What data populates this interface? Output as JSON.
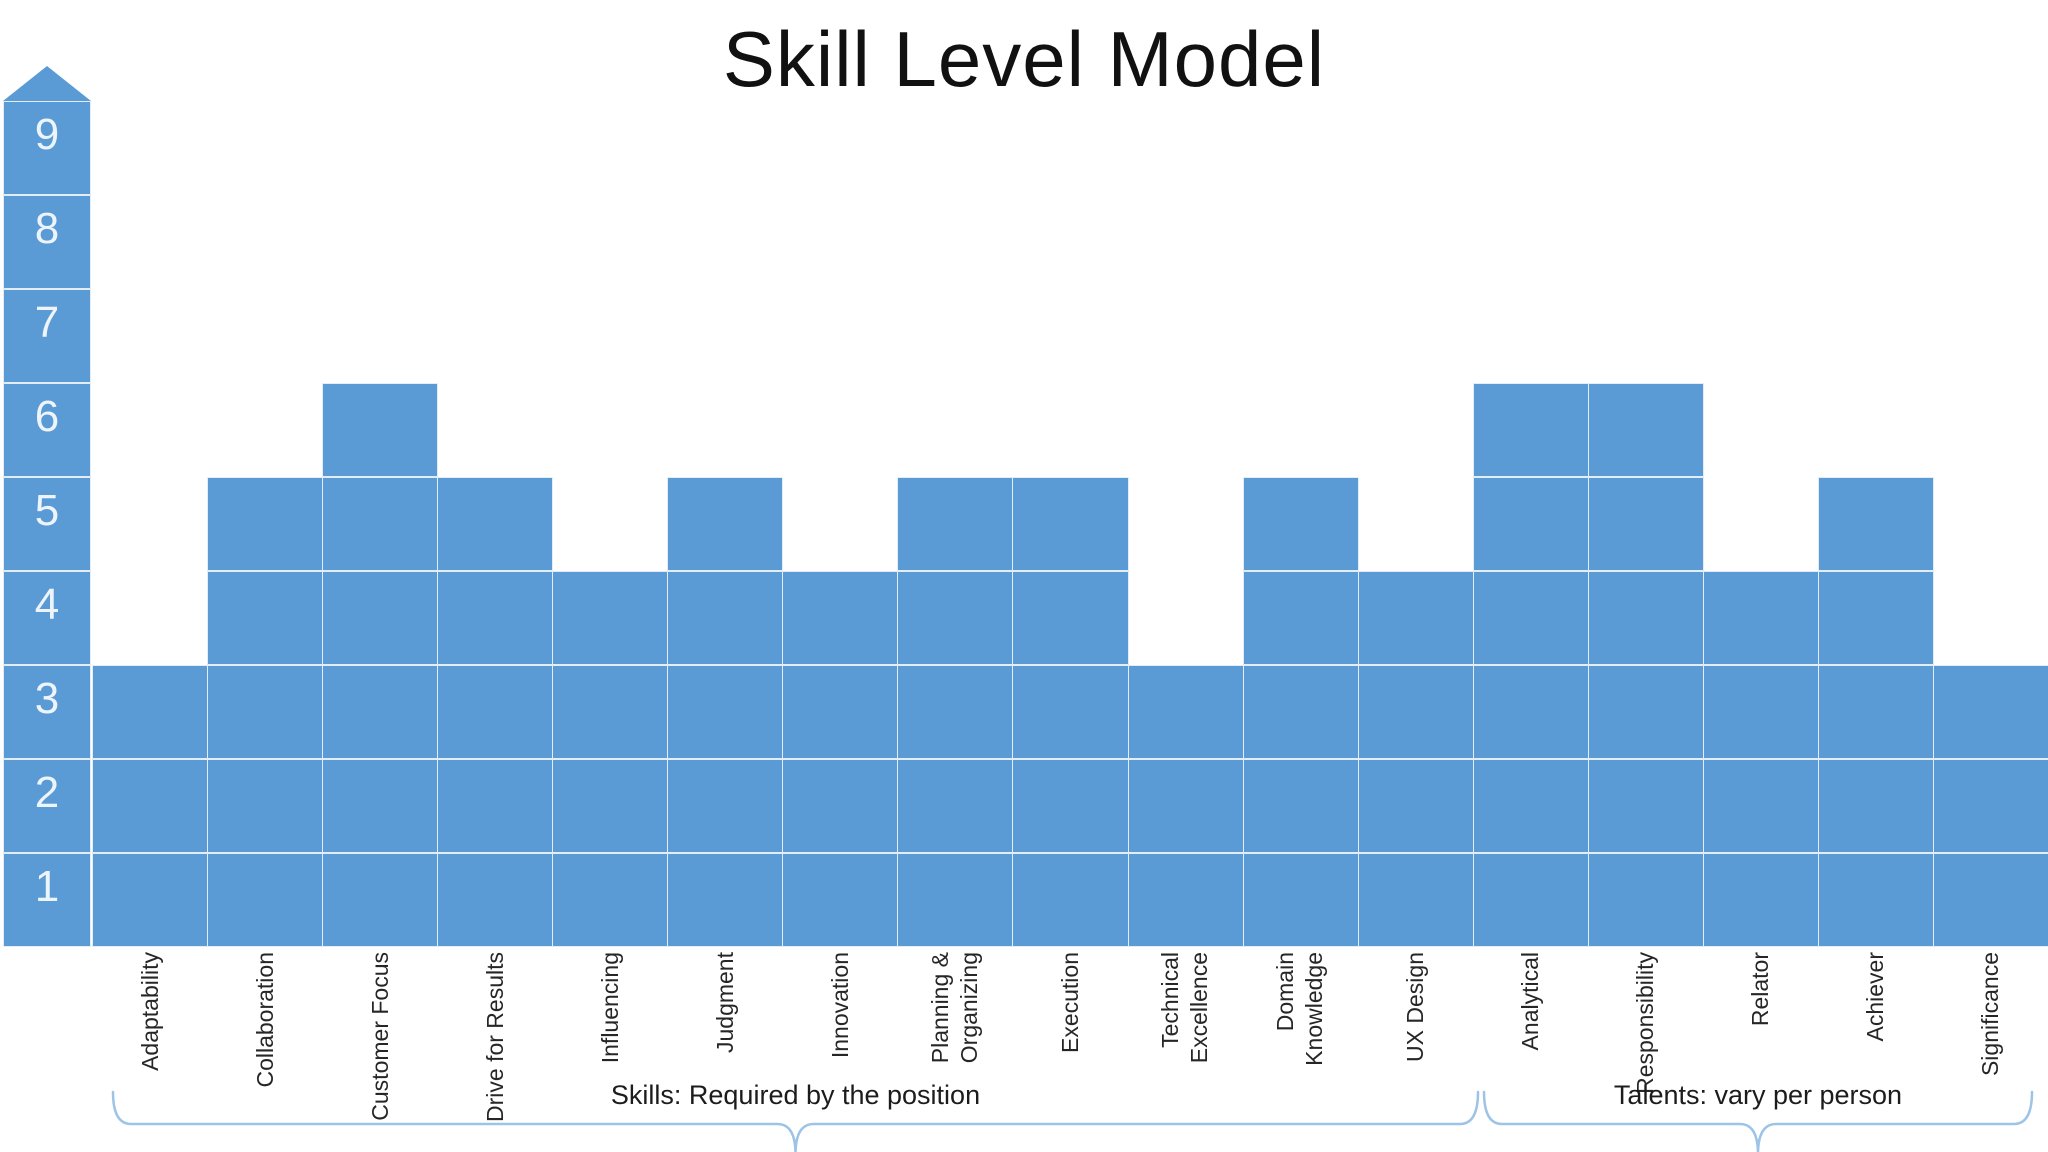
{
  "title": "Skill Level Model",
  "colors": {
    "bar_fill": "#5B9BD5",
    "cell_grid_line": "#E2EDF8",
    "axis_number_text": "#EEF4FB",
    "label_text": "#262626",
    "title_text": "#111111",
    "brace_line": "#9DC3E6",
    "background": "#FFFFFF"
  },
  "y_axis": {
    "arrow_icon": "up-arrow",
    "numbers": [
      "9",
      "8",
      "7",
      "6",
      "5",
      "4",
      "3",
      "2",
      "1"
    ]
  },
  "chart_data": {
    "type": "bar",
    "title": "Skill Level Model",
    "categories": [
      "Adaptability",
      "Collaboration",
      "Customer Focus",
      "Drive for Results",
      "Influencing",
      "Judgment",
      "Innovation",
      "Planning &\nOrganizing",
      "Execution",
      "Technical\nExcellence",
      "Domain\nKnowledge",
      "UX Design",
      "Analytical",
      "Responsibility",
      "Relator",
      "Achiever",
      "Significance"
    ],
    "values": [
      3,
      5,
      6,
      5,
      4,
      5,
      4,
      5,
      5,
      3,
      5,
      4,
      6,
      6,
      4,
      5,
      3
    ],
    "xlabel": "",
    "ylabel": "",
    "ylim": [
      0,
      9
    ],
    "grid": true,
    "legend": "none",
    "bar_style": "stacked unit blocks with light grid lines",
    "groups": [
      {
        "label": "Skills: Required by the position",
        "categories_from": "Adaptability",
        "categories_to": "UX Design",
        "span": [
          0,
          11
        ]
      },
      {
        "label": "Talents: vary per person",
        "categories_from": "Analytical",
        "categories_to": "Significance",
        "span": [
          12,
          16
        ]
      }
    ]
  }
}
